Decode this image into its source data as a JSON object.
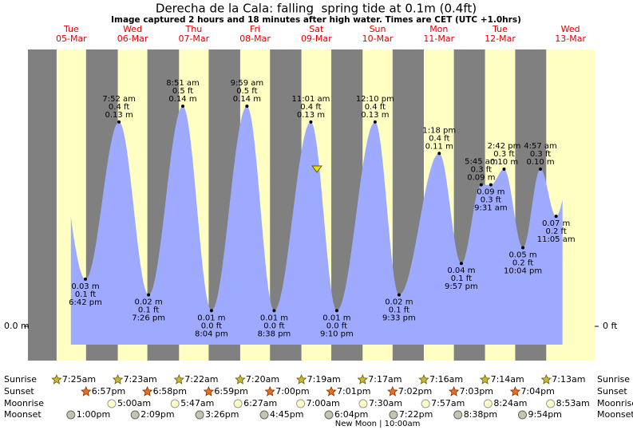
{
  "chart_data": {
    "type": "tide",
    "title": "Derecha de la Cala: falling  spring tide at 0.1m (0.4ft)",
    "subtitle": "Image captured 2 hours and 18 minutes after high water. Times are CET (UTC +1.0hrs)",
    "current_height_m": 0.1,
    "ylim": [
      -0.0218,
      0.1761
    ],
    "yticks": [
      {
        "value": 0,
        "label": "0.0 m"
      }
    ],
    "y2lim": [
      -0.0715,
      0.5778
    ],
    "y2ticks": [
      {
        "value": 0,
        "label": "0 ft"
      }
    ],
    "row_labels": {
      "sunrise": "Sunrise",
      "sunset": "Sunset",
      "moonrise": "Moonrise",
      "moonset": "Moonset"
    },
    "colors": {
      "night": "#808080",
      "day": "#ffffc4",
      "water": "#9eaaff"
    },
    "days": [
      {
        "name": "Tue",
        "date": "05-Mar",
        "sunrise": "7:25am",
        "sunset": "6:57pm",
        "moonrise": null,
        "moonset": "1:00pm",
        "tides": [
          {
            "time": "6:42 pm",
            "m": 0.03,
            "m_label": "0.03 m",
            "ft": 0.1,
            "ft_label": "0.1 ft"
          }
        ]
      },
      {
        "name": "Wed",
        "date": "06-Mar",
        "sunrise": "7:23am",
        "sunset": "6:58pm",
        "moonrise": "5:00am",
        "moonset": "2:09pm",
        "tides": [
          {
            "time": "7:52 am",
            "m": 0.13,
            "m_label": "0.13 m",
            "ft": 0.4,
            "ft_label": "0.4 ft"
          },
          {
            "time": "7:26 pm",
            "m": 0.02,
            "m_label": "0.02 m",
            "ft": 0.1,
            "ft_label": "0.1 ft"
          }
        ]
      },
      {
        "name": "Thu",
        "date": "07-Mar",
        "sunrise": "7:22am",
        "sunset": "6:59pm",
        "moonrise": "5:47am",
        "moonset": "3:26pm",
        "tides": [
          {
            "time": "8:51 am",
            "m": 0.14,
            "m_label": "0.14 m",
            "ft": 0.5,
            "ft_label": "0.5 ft"
          },
          {
            "time": "8:04 pm",
            "m": 0.01,
            "m_label": "0.01 m",
            "ft": 0,
            "ft_label": "0.0 ft"
          }
        ]
      },
      {
        "name": "Fri",
        "date": "08-Mar",
        "sunrise": "7:20am",
        "sunset": "7:00pm",
        "moonrise": "6:27am",
        "moonset": "4:45pm",
        "tides": [
          {
            "time": "9:59 am",
            "m": 0.14,
            "m_label": "0.14 m",
            "ft": 0.5,
            "ft_label": "0.5 ft"
          },
          {
            "time": "8:38 pm",
            "m": 0.01,
            "m_label": "0.01 m",
            "ft": 0,
            "ft_label": "0.0 ft"
          }
        ]
      },
      {
        "name": "Sat",
        "date": "09-Mar",
        "sunrise": "7:19am",
        "sunset": "7:01pm",
        "moonrise": "7:00am",
        "moonset": "6:04pm",
        "tides": [
          {
            "time": "11:01 am",
            "m": 0.13,
            "m_label": "0.13 m",
            "ft": 0.4,
            "ft_label": "0.4 ft"
          },
          {
            "time": "9:10 pm",
            "m": 0.01,
            "m_label": "0.01 m",
            "ft": 0,
            "ft_label": "0.0 ft"
          }
        ]
      },
      {
        "name": "Sun",
        "date": "10-Mar",
        "sunrise": "7:17am",
        "sunset": "7:02pm",
        "moonrise": "7:30am",
        "moonset": "7:22pm",
        "moon_phase": "New Moon | 10:00am",
        "tides": [
          {
            "time": "12:10 pm",
            "m": 0.13,
            "m_label": "0.13 m",
            "ft": 0.4,
            "ft_label": "0.4 ft"
          },
          {
            "time": "9:33 pm",
            "m": 0.02,
            "m_label": "0.02 m",
            "ft": 0.1,
            "ft_label": "0.1 ft"
          }
        ]
      },
      {
        "name": "Mon",
        "date": "11-Mar",
        "sunrise": "7:16am",
        "sunset": "7:03pm",
        "moonrise": "7:57am",
        "moonset": "8:38pm",
        "tides": [
          {
            "time": "1:18 pm",
            "m": 0.11,
            "m_label": "0.11 m",
            "ft": 0.4,
            "ft_label": "0.4 ft"
          },
          {
            "time": "9:57 pm",
            "m": 0.04,
            "m_label": "0.04 m",
            "ft": 0.1,
            "ft_label": "0.1 ft"
          }
        ]
      },
      {
        "name": "Tue",
        "date": "12-Mar",
        "sunrise": "7:14am",
        "sunset": "7:04pm",
        "moonrise": "8:24am",
        "moonset": "9:54pm",
        "tides": [
          {
            "time": "5:45 am",
            "m": 0.09,
            "m_label": "0.09 m",
            "ft": 0.3,
            "ft_label": "0.3 ft"
          },
          {
            "time": "9:31 am",
            "m": 0.09,
            "m_label": "0.09 m",
            "ft": 0.3,
            "ft_label": "0.3 ft"
          },
          {
            "time": "2:42 pm",
            "m": 0.1,
            "m_label": "0.10 m",
            "ft": 0.3,
            "ft_label": "0.3 ft"
          },
          {
            "time": "10:04 pm",
            "m": 0.05,
            "m_label": "0.05 m",
            "ft": 0.2,
            "ft_label": "0.2 ft"
          }
        ]
      },
      {
        "name": "Wed",
        "date": "13-Mar",
        "sunrise": "7:13am",
        "sunset": null,
        "moonrise": "8:53am",
        "moonset": null,
        "tides": [
          {
            "time": "4:57 am",
            "m": 0.1,
            "m_label": "0.10 m",
            "ft": 0.3,
            "ft_label": "0.3 ft"
          },
          {
            "time": "11:05 am",
            "m": 0.07,
            "m_label": "0.07 m",
            "ft": 0.2,
            "ft_label": "0.2 ft"
          }
        ]
      }
    ]
  }
}
